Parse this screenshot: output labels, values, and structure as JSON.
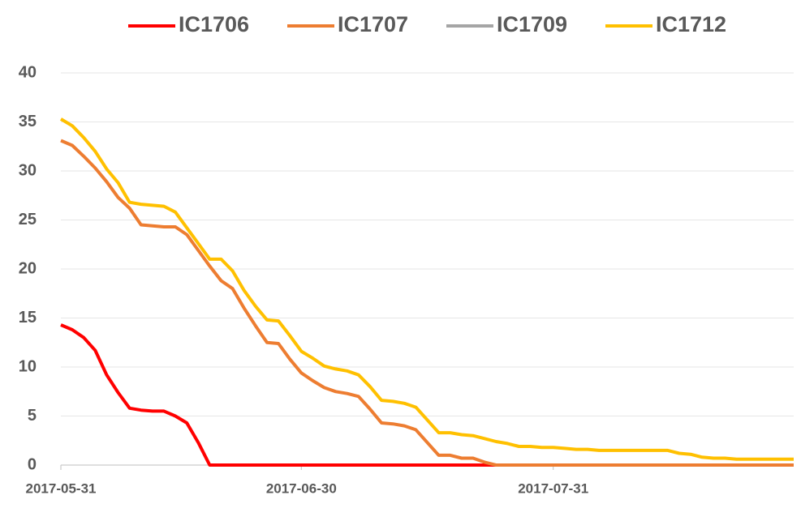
{
  "chart_data": {
    "type": "line",
    "categories": [
      "2017-05-31",
      null,
      null,
      null,
      null,
      null,
      null,
      null,
      null,
      null,
      null,
      null,
      null,
      null,
      null,
      null,
      null,
      null,
      null,
      null,
      null,
      "2017-06-30",
      null,
      null,
      null,
      null,
      null,
      null,
      null,
      null,
      null,
      null,
      null,
      null,
      null,
      null,
      null,
      null,
      null,
      null,
      null,
      null,
      null,
      "2017-07-31",
      null,
      null,
      null,
      null,
      null,
      null,
      null,
      null,
      null,
      null,
      null,
      null,
      null,
      null,
      null,
      null,
      null,
      null,
      null,
      null,
      null
    ],
    "series": [
      {
        "name": "IC1706",
        "color": "#ff0000",
        "values": [
          14.3,
          13.8,
          13.0,
          11.7,
          9.2,
          7.4,
          5.8,
          5.6,
          5.5,
          5.5,
          5.0,
          4.3,
          2.3,
          0,
          0,
          0,
          0,
          0,
          0,
          0,
          0,
          0,
          0,
          0,
          0,
          0,
          0,
          0,
          0,
          0,
          0,
          0,
          0,
          0,
          0,
          0,
          0,
          0,
          0,
          0,
          0,
          0,
          0,
          0,
          0,
          0,
          0,
          0,
          0,
          0,
          0,
          0,
          0,
          0,
          0,
          0,
          0,
          0,
          0,
          0,
          0,
          0,
          0,
          0,
          0
        ]
      },
      {
        "name": "IC1707",
        "color": "#ed7d31",
        "values": [
          33.1,
          32.6,
          31.5,
          30.3,
          28.9,
          27.3,
          26.2,
          24.5,
          24.4,
          24.3,
          24.3,
          23.5,
          21.9,
          20.3,
          18.8,
          18.0,
          16.0,
          14.2,
          12.5,
          12.4,
          10.8,
          9.4,
          8.6,
          7.9,
          7.5,
          7.3,
          7.0,
          5.7,
          4.3,
          4.2,
          4.0,
          3.6,
          2.3,
          1.0,
          1.0,
          0.7,
          0.7,
          0.3,
          0,
          0,
          0,
          0,
          0,
          0,
          0,
          0,
          0,
          0,
          0,
          0,
          0,
          0,
          0,
          0,
          0,
          0,
          0,
          0,
          0,
          0,
          0,
          0,
          0,
          0,
          0
        ]
      },
      {
        "name": "IC1709",
        "color": "#a5a5a5",
        "values": [
          null,
          null,
          null,
          null,
          null,
          null,
          null,
          null,
          null,
          null,
          null,
          null,
          null,
          null,
          null,
          null,
          null,
          null,
          null,
          null,
          null,
          null,
          null,
          null,
          null,
          null,
          null,
          null,
          null,
          null,
          null,
          null,
          null,
          null,
          null,
          null,
          null,
          null,
          null,
          null,
          null,
          null,
          null,
          null,
          null,
          null,
          null,
          null,
          null,
          null,
          null,
          null,
          null,
          null,
          null,
          null,
          null,
          null,
          null,
          null,
          null,
          null,
          null,
          null,
          null
        ]
      },
      {
        "name": "IC1712",
        "color": "#ffc000",
        "values": [
          35.3,
          34.6,
          33.4,
          32.0,
          30.2,
          28.8,
          26.8,
          26.6,
          26.5,
          26.4,
          25.8,
          24.2,
          22.6,
          21.0,
          21.0,
          19.8,
          17.8,
          16.2,
          14.8,
          14.7,
          13.2,
          11.6,
          10.9,
          10.1,
          9.8,
          9.6,
          9.2,
          8.0,
          6.6,
          6.5,
          6.3,
          5.9,
          4.6,
          3.3,
          3.3,
          3.1,
          3.0,
          2.7,
          2.4,
          2.2,
          1.9,
          1.9,
          1.8,
          1.8,
          1.7,
          1.6,
          1.6,
          1.5,
          1.5,
          1.5,
          1.5,
          1.5,
          1.5,
          1.5,
          1.2,
          1.1,
          0.8,
          0.7,
          0.7,
          0.6,
          0.6,
          0.6,
          0.6,
          0.6,
          0.6
        ]
      }
    ],
    "ylim": [
      0,
      40
    ],
    "yticks": [
      0,
      5,
      10,
      15,
      20,
      25,
      30,
      35,
      40
    ],
    "grid": true,
    "legend": "top"
  }
}
